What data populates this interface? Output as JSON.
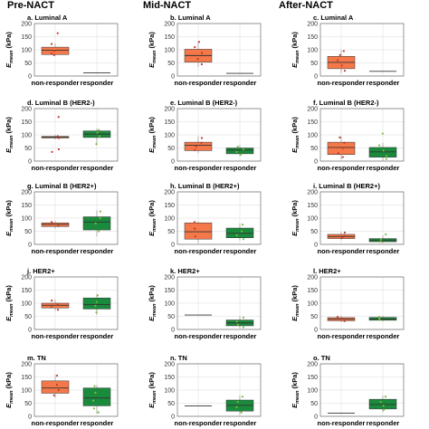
{
  "columns": [
    "Pre-NACT",
    "Mid-NACT",
    "After-NACT"
  ],
  "ylabel_main": "E",
  "ylabel_sub": "mean",
  "ylabel_unit": "(kPa)",
  "y_ticks": [
    0,
    50,
    100,
    150,
    200
  ],
  "categories": [
    "non-responder",
    "responder"
  ],
  "colors": {
    "non_responder": "#f4784a",
    "responder": "#1a8a3c",
    "median": "#333333",
    "grid": "#d9d9d9",
    "axis": "#555555"
  },
  "chart_data": [
    {
      "panel": "a. Luminal A",
      "type": "box",
      "ylim": [
        0,
        200
      ],
      "boxes": [
        {
          "category": "non-responder",
          "q1": 82,
          "median": 98,
          "q3": 110,
          "whisker_low": 78,
          "whisker_high": 125,
          "points": [
            163,
            122,
            96,
            85,
            80
          ]
        },
        {
          "category": "responder",
          "q1": 12,
          "median": 12,
          "q3": 12,
          "whisker_low": 12,
          "whisker_high": 12,
          "points": []
        }
      ]
    },
    {
      "panel": "b. Luminal A",
      "type": "box",
      "ylim": [
        0,
        200
      ],
      "boxes": [
        {
          "category": "non-responder",
          "q1": 53,
          "median": 78,
          "q3": 102,
          "whisker_low": 35,
          "whisker_high": 132,
          "points": [
            130,
            110,
            88,
            65,
            45
          ]
        },
        {
          "category": "responder",
          "q1": 10,
          "median": 10,
          "q3": 10,
          "whisker_low": 10,
          "whisker_high": 10,
          "points": []
        }
      ]
    },
    {
      "panel": "c. Luminal A",
      "type": "box",
      "ylim": [
        0,
        200
      ],
      "boxes": [
        {
          "category": "non-responder",
          "q1": 28,
          "median": 52,
          "q3": 75,
          "whisker_low": 10,
          "whisker_high": 100,
          "points": [
            95,
            80,
            60,
            40,
            20
          ]
        },
        {
          "category": "responder",
          "q1": 18,
          "median": 18,
          "q3": 18,
          "whisker_low": 18,
          "whisker_high": 18,
          "points": []
        }
      ]
    },
    {
      "panel": "d. Luminal B (HER2-)",
      "type": "box",
      "ylim": [
        0,
        200
      ],
      "boxes": [
        {
          "category": "non-responder",
          "q1": 88,
          "median": 91,
          "q3": 94,
          "whisker_low": 82,
          "whisker_high": 100,
          "points": [
            168,
            95,
            88,
            45,
            35
          ]
        },
        {
          "category": "responder",
          "q1": 90,
          "median": 103,
          "q3": 115,
          "whisker_low": 60,
          "whisker_high": 125,
          "points": [
            118,
            108,
            95,
            65
          ]
        }
      ]
    },
    {
      "panel": "e. Luminal B (HER2-)",
      "type": "box",
      "ylim": [
        0,
        200
      ],
      "boxes": [
        {
          "category": "non-responder",
          "q1": 40,
          "median": 60,
          "q3": 72,
          "whisker_low": 30,
          "whisker_high": 95,
          "points": [
            88,
            70,
            55,
            42
          ]
        },
        {
          "category": "responder",
          "q1": 28,
          "median": 42,
          "q3": 50,
          "whisker_low": 18,
          "whisker_high": 62,
          "points": [
            55,
            45,
            35,
            25
          ]
        }
      ]
    },
    {
      "panel": "f. Luminal B (HER2-)",
      "type": "box",
      "ylim": [
        0,
        200
      ],
      "boxes": [
        {
          "category": "non-responder",
          "q1": 25,
          "median": 52,
          "q3": 72,
          "whisker_low": 5,
          "whisker_high": 95,
          "points": [
            90,
            70,
            50,
            30,
            15
          ]
        },
        {
          "category": "responder",
          "q1": 15,
          "median": 35,
          "q3": 52,
          "whisker_low": 2,
          "whisker_high": 70,
          "points": [
            105,
            60,
            40,
            20,
            8
          ]
        }
      ]
    },
    {
      "panel": "g. Luminal B (HER2+)",
      "type": "box",
      "ylim": [
        0,
        200
      ],
      "boxes": [
        {
          "category": "non-responder",
          "q1": 68,
          "median": 76,
          "q3": 82,
          "whisker_low": 60,
          "whisker_high": 90,
          "points": [
            85,
            78,
            70
          ]
        },
        {
          "category": "responder",
          "q1": 55,
          "median": 85,
          "q3": 105,
          "whisker_low": 30,
          "whisker_high": 130,
          "points": [
            125,
            100,
            80,
            50
          ]
        }
      ]
    },
    {
      "panel": "h. Luminal B (HER2+)",
      "type": "box",
      "ylim": [
        0,
        200
      ],
      "boxes": [
        {
          "category": "non-responder",
          "q1": 20,
          "median": 48,
          "q3": 82,
          "whisker_low": 5,
          "whisker_high": 88,
          "points": [
            85,
            60,
            30
          ]
        },
        {
          "category": "responder",
          "q1": 25,
          "median": 42,
          "q3": 62,
          "whisker_low": 15,
          "whisker_high": 80,
          "points": [
            75,
            50,
            35,
            20
          ]
        }
      ]
    },
    {
      "panel": "i. Luminal B (HER2+)",
      "type": "box",
      "ylim": [
        0,
        200
      ],
      "boxes": [
        {
          "category": "non-responder",
          "q1": 22,
          "median": 30,
          "q3": 38,
          "whisker_low": 15,
          "whisker_high": 48,
          "points": [
            45,
            32,
            25
          ]
        },
        {
          "category": "responder",
          "q1": 10,
          "median": 16,
          "q3": 22,
          "whisker_low": 5,
          "whisker_high": 35,
          "points": [
            38,
            18,
            10
          ]
        }
      ]
    },
    {
      "panel": "j. HER2+",
      "type": "box",
      "ylim": [
        0,
        200
      ],
      "boxes": [
        {
          "category": "non-responder",
          "q1": 82,
          "median": 92,
          "q3": 100,
          "whisker_low": 70,
          "whisker_high": 115,
          "points": [
            110,
            95,
            85,
            75
          ]
        },
        {
          "category": "responder",
          "q1": 78,
          "median": 95,
          "q3": 120,
          "whisker_low": 55,
          "whisker_high": 135,
          "points": [
            130,
            105,
            90,
            65
          ]
        }
      ]
    },
    {
      "panel": "k. HER2+",
      "type": "box",
      "ylim": [
        0,
        200
      ],
      "boxes": [
        {
          "category": "non-responder",
          "q1": 55,
          "median": 55,
          "q3": 55,
          "whisker_low": 55,
          "whisker_high": 55,
          "points": []
        },
        {
          "category": "responder",
          "q1": 14,
          "median": 25,
          "q3": 36,
          "whisker_low": 5,
          "whisker_high": 50,
          "points": [
            45,
            30,
            18,
            8
          ]
        }
      ]
    },
    {
      "panel": "l. HER2+",
      "type": "box",
      "ylim": [
        0,
        200
      ],
      "boxes": [
        {
          "category": "non-responder",
          "q1": 33,
          "median": 40,
          "q3": 45,
          "whisker_low": 28,
          "whisker_high": 52,
          "points": [
            48,
            40,
            32
          ]
        },
        {
          "category": "responder",
          "q1": 35,
          "median": 40,
          "q3": 46,
          "whisker_low": 30,
          "whisker_high": 52,
          "points": [
            48,
            42,
            36
          ]
        }
      ]
    },
    {
      "panel": "m. TN",
      "type": "box",
      "ylim": [
        0,
        200
      ],
      "boxes": [
        {
          "category": "non-responder",
          "q1": 88,
          "median": 108,
          "q3": 135,
          "whisker_low": 70,
          "whisker_high": 160,
          "points": [
            155,
            120,
            100,
            80
          ]
        },
        {
          "category": "responder",
          "q1": 40,
          "median": 70,
          "q3": 108,
          "whisker_low": 10,
          "whisker_high": 120,
          "points": [
            115,
            90,
            60,
            30,
            15
          ]
        }
      ]
    },
    {
      "panel": "n. TN",
      "type": "box",
      "ylim": [
        0,
        200
      ],
      "boxes": [
        {
          "category": "non-responder",
          "q1": 40,
          "median": 40,
          "q3": 40,
          "whisker_low": 40,
          "whisker_high": 40,
          "points": []
        },
        {
          "category": "responder",
          "q1": 20,
          "median": 42,
          "q3": 62,
          "whisker_low": 5,
          "whisker_high": 80,
          "points": [
            75,
            55,
            35,
            15
          ]
        }
      ]
    },
    {
      "panel": "o. TN",
      "type": "box",
      "ylim": [
        0,
        200
      ],
      "boxes": [
        {
          "category": "non-responder",
          "q1": 12,
          "median": 12,
          "q3": 12,
          "whisker_low": 12,
          "whisker_high": 12,
          "points": []
        },
        {
          "category": "responder",
          "q1": 28,
          "median": 45,
          "q3": 65,
          "whisker_low": 15,
          "whisker_high": 80,
          "points": [
            75,
            55,
            40,
            25
          ]
        }
      ]
    }
  ]
}
